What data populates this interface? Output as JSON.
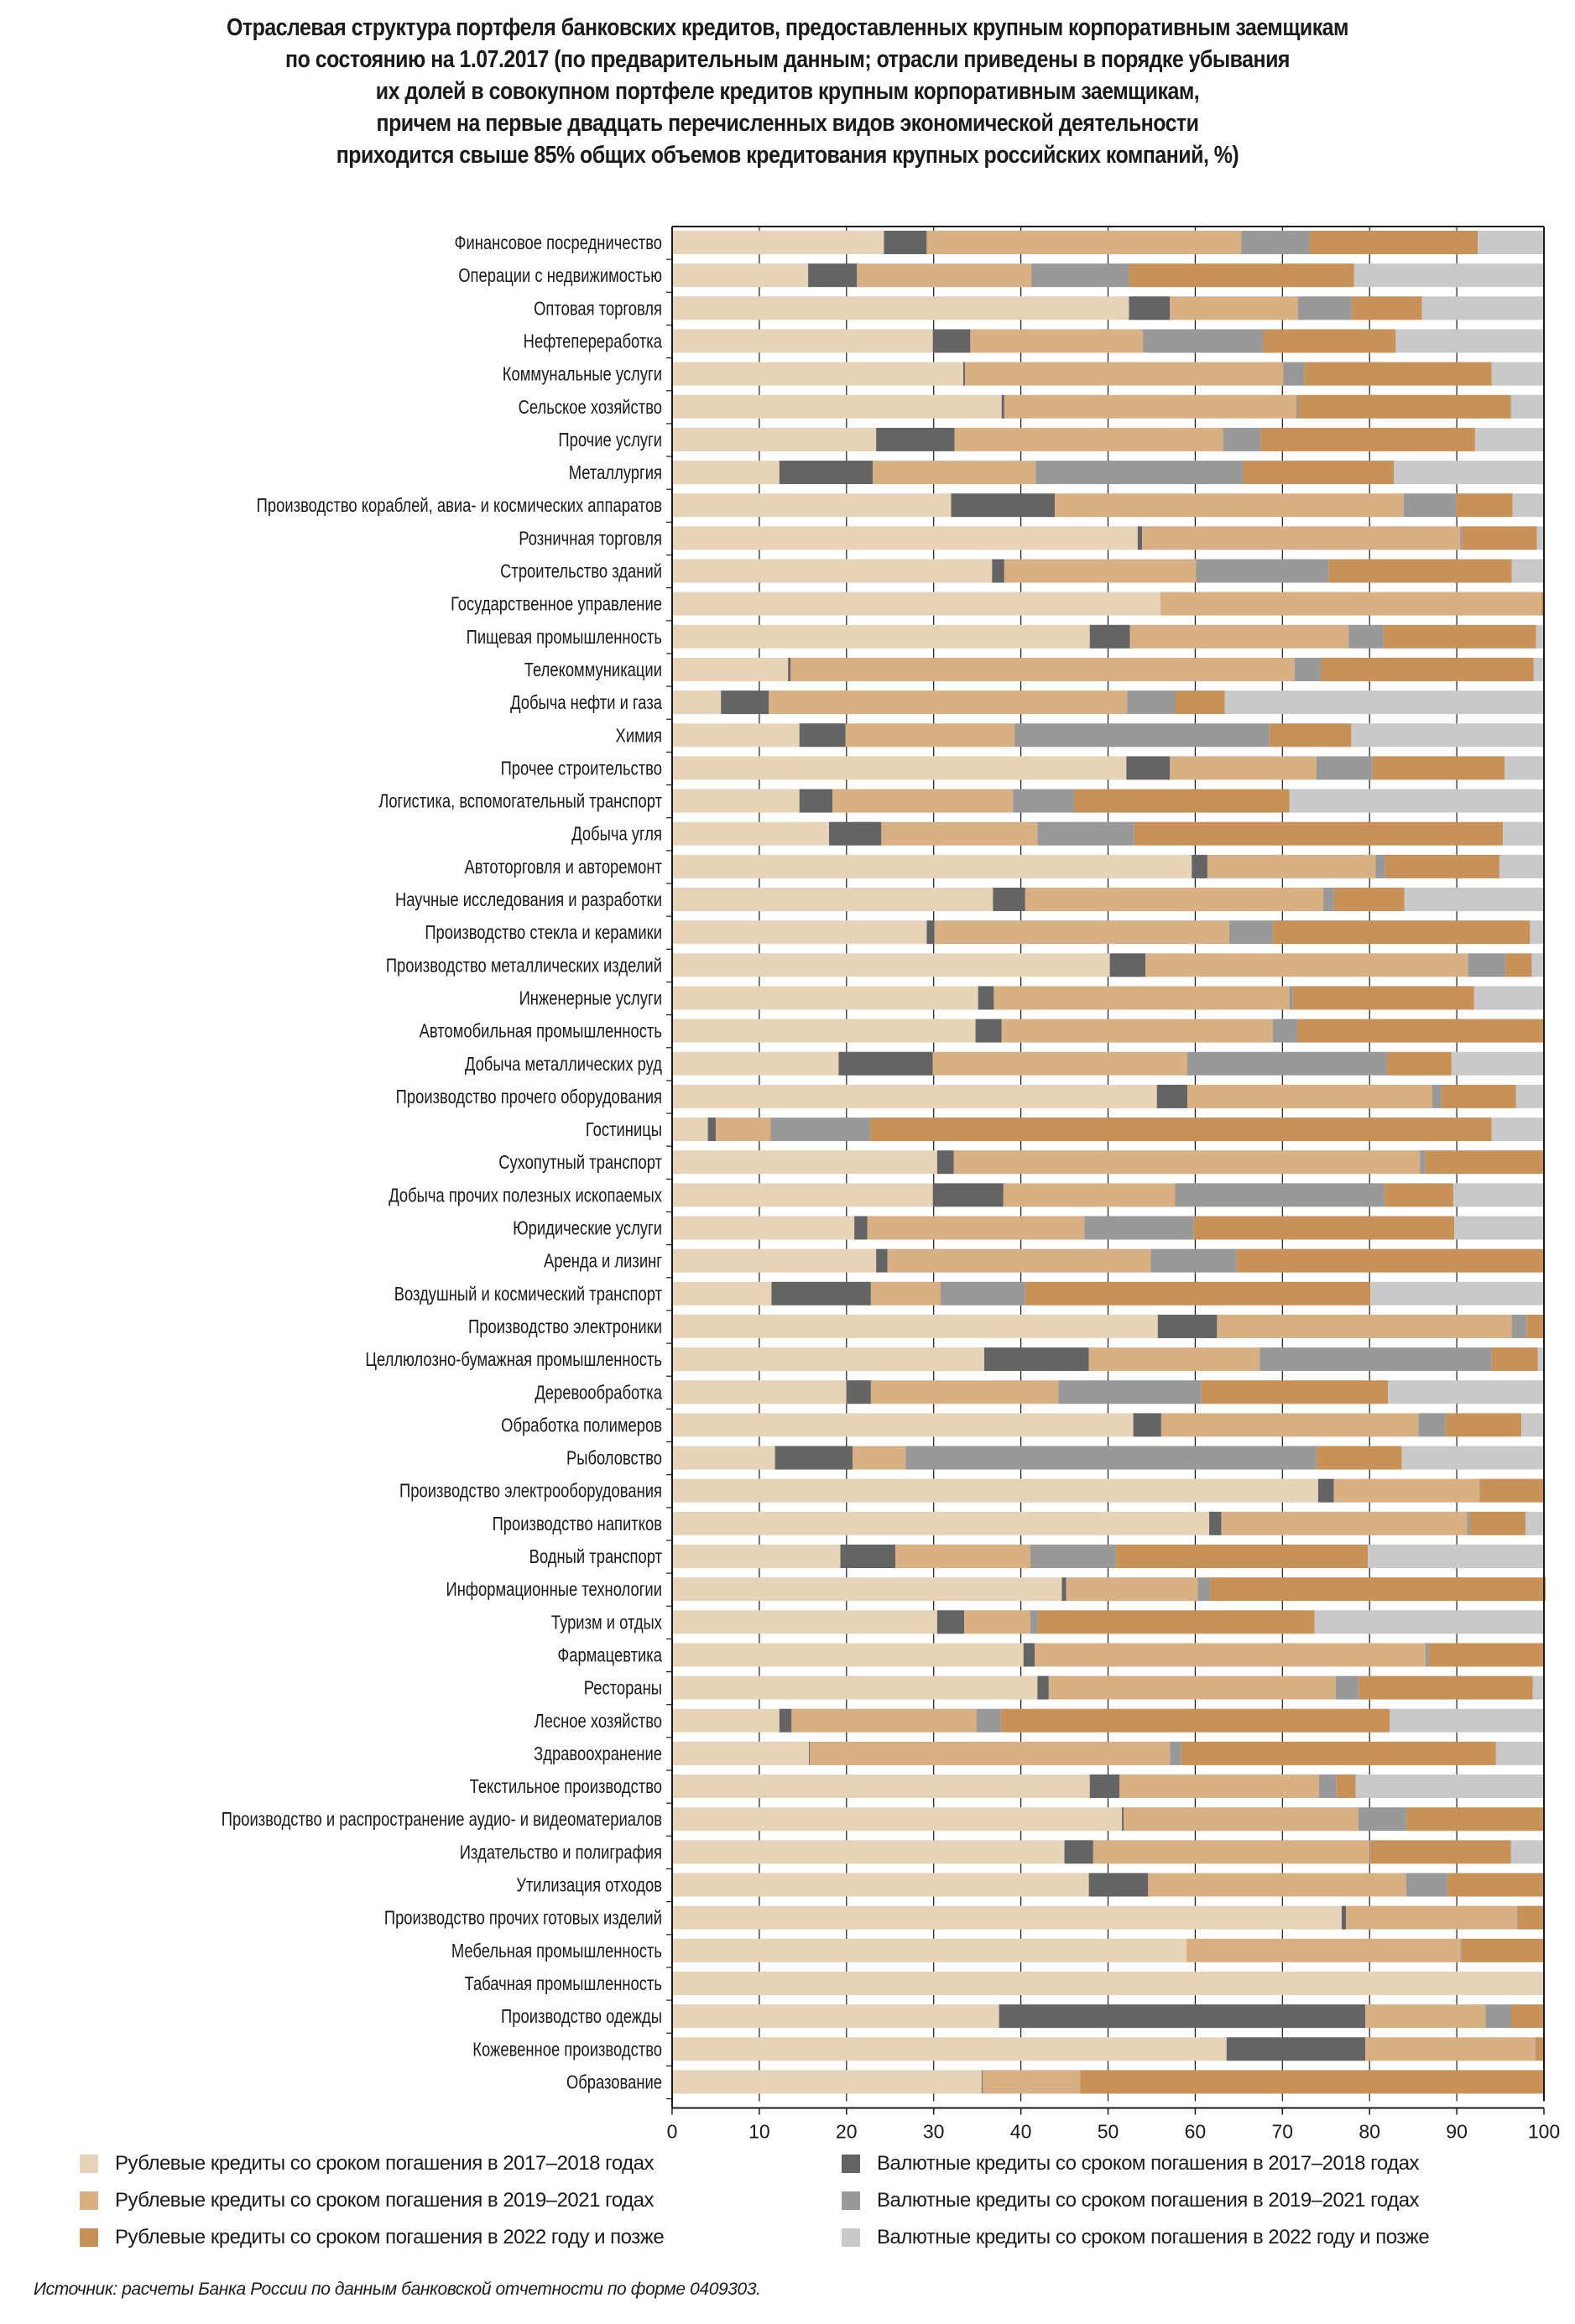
{
  "chart_data": {
    "type": "bar",
    "orientation": "horizontal",
    "stacked": true,
    "title_lines": [
      "Отраслевая структура портфеля банковских кредитов, предоставленных крупным корпоративным заемщикам",
      "по состоянию на 1.07.2017 (по предварительным данным; отрасли приведены в порядке убывания",
      "их долей в совокупном портфеле кредитов крупным корпоративным заемщикам,",
      "причем на первые двадцать перечисленных видов экономической деятельности",
      "приходится свыше 85% общих объемов кредитования крупных российских компаний, %)"
    ],
    "xlabel": "",
    "ylabel": "",
    "xlim": [
      0,
      100
    ],
    "xticks": [
      0,
      10,
      20,
      30,
      40,
      50,
      60,
      70,
      80,
      90,
      100
    ],
    "grid": true,
    "legend_position": "bottom",
    "series": [
      {
        "name": "Рублевые кредиты со сроком погашения в 2017–2018 годах",
        "color": "#e6d3b8"
      },
      {
        "name": "Валютные кредиты со сроком погашения в 2017–2018 годах",
        "color": "#636463"
      },
      {
        "name": "Рублевые кредиты со сроком погашения в 2019–2021 годах",
        "color": "#d8b084"
      },
      {
        "name": "Валютные кредиты со сроком погашения в 2019–2021 годах",
        "color": "#989998"
      },
      {
        "name": "Рублевые кредиты со сроком погашения в 2022 году и позже",
        "color": "#c79158"
      },
      {
        "name": "Валютные кредиты со сроком погашения в 2022 году и позже",
        "color": "#c9c9c9"
      }
    ],
    "series_order_note": "values per category in order: rub_2017_18, fx_2017_18, rub_2019_21, fx_2019_21, rub_2022plus, fx_2022plus",
    "categories": [
      "Финансовое посредничество",
      "Операции с недвижимостью",
      "Оптовая торговля",
      "Нефтепереработка",
      "Коммунальные услуги",
      "Сельское хозяйство",
      "Прочие услуги",
      "Металлургия",
      "Производство кораблей, авиа- и космических аппаратов",
      "Розничная торговля",
      "Строительство зданий",
      "Государственное управление",
      "Пищевая промышленность",
      "Телекоммуникации",
      "Добыча нефти и газа",
      "Химия",
      "Прочее строительство",
      "Логистика, вспомогательный транспорт",
      "Добыча угля",
      "Автоторговля и авторемонт",
      "Научные исследования и разработки",
      "Производство стекла и керамики",
      "Производство металлических изделий",
      "Инженерные услуги",
      "Автомобильная промышленность",
      "Добыча металлических руд",
      "Производство прочего оборудования",
      "Гостиницы",
      "Сухопутный транспорт",
      "Добыча прочих полезных ископаемых",
      "Юридические услуги",
      "Аренда и лизинг",
      "Воздушный и космический транспорт",
      "Производство электроники",
      "Целлюлозно-бумажная промышленность",
      "Деревообработка",
      "Обработка полимеров",
      "Рыболовство",
      "Производство электрооборудования",
      "Производство напитков",
      "Водный транспорт",
      "Информационные технологии",
      "Туризм и отдых",
      "Фармацевтика",
      "Рестораны",
      "Лесное хозяйство",
      "Здравоохранение",
      "Текстильное производство",
      "Производство и распространение аудио- и видеоматериалов",
      "Издательство и полиграфия",
      "Утилизация отходов",
      "Производство прочих готовых изделий",
      "Мебельная промышленность",
      "Табачная промышленность",
      "Производство одежды",
      "Кожевенное производство",
      "Образование"
    ],
    "values": [
      [
        24.3,
        4.9,
        36.1,
        7.8,
        19.3,
        7.6
      ],
      [
        15.6,
        5.6,
        20.0,
        11.2,
        25.8,
        21.8
      ],
      [
        52.4,
        4.7,
        14.7,
        6.1,
        8.1,
        14.0
      ],
      [
        29.9,
        4.3,
        19.8,
        13.8,
        15.2,
        17.0
      ],
      [
        33.4,
        0.2,
        36.5,
        2.4,
        21.5,
        6.0
      ],
      [
        37.8,
        0.3,
        33.5,
        0.2,
        24.4,
        3.8
      ],
      [
        23.4,
        9.0,
        30.8,
        4.3,
        24.6,
        7.9
      ],
      [
        12.3,
        10.7,
        18.7,
        23.8,
        17.3,
        17.2
      ],
      [
        32.0,
        11.9,
        40.0,
        6.0,
        6.5,
        3.6
      ],
      [
        53.4,
        0.5,
        36.5,
        0.2,
        8.6,
        0.8
      ],
      [
        36.7,
        1.4,
        22.0,
        15.2,
        21.0,
        3.7
      ],
      [
        56.0,
        0.0,
        43.7,
        0.0,
        0.3,
        0.0
      ],
      [
        47.9,
        4.6,
        25.1,
        4.0,
        17.5,
        0.9
      ],
      [
        13.3,
        0.3,
        57.8,
        3.0,
        24.4,
        1.2
      ],
      [
        5.6,
        5.5,
        41.1,
        5.5,
        5.7,
        36.6
      ],
      [
        14.6,
        5.3,
        19.4,
        29.2,
        9.4,
        22.1
      ],
      [
        52.1,
        5.0,
        16.8,
        6.4,
        15.2,
        4.5
      ],
      [
        14.6,
        3.8,
        20.7,
        7.0,
        24.7,
        29.2
      ],
      [
        18.0,
        6.0,
        17.9,
        11.1,
        42.3,
        4.7
      ],
      [
        59.6,
        1.8,
        19.3,
        1.1,
        13.1,
        5.1
      ],
      [
        36.8,
        3.7,
        34.2,
        1.2,
        8.1,
        16.0
      ],
      [
        29.2,
        0.9,
        33.8,
        5.0,
        29.5,
        1.6
      ],
      [
        50.2,
        4.1,
        37.0,
        4.3,
        3.0,
        1.4
      ],
      [
        35.1,
        1.8,
        33.9,
        0.4,
        20.8,
        8.0
      ],
      [
        34.8,
        3.0,
        31.1,
        2.8,
        28.3,
        0.0
      ],
      [
        19.1,
        10.8,
        29.2,
        22.9,
        7.4,
        10.6
      ],
      [
        55.6,
        3.5,
        28.1,
        1.0,
        8.6,
        3.2
      ],
      [
        4.1,
        0.9,
        6.3,
        11.4,
        71.3,
        6.0
      ],
      [
        30.4,
        1.9,
        53.5,
        0.6,
        13.6,
        0.0
      ],
      [
        29.9,
        8.1,
        19.7,
        24.0,
        7.9,
        10.4
      ],
      [
        20.9,
        1.5,
        24.9,
        12.5,
        29.9,
        10.3
      ],
      [
        23.4,
        1.3,
        30.2,
        9.8,
        35.3,
        0.0
      ],
      [
        11.4,
        11.4,
        8.0,
        9.7,
        39.6,
        19.9
      ],
      [
        55.7,
        6.8,
        33.8,
        1.7,
        2.0,
        0.0
      ],
      [
        35.8,
        12.0,
        19.6,
        26.6,
        5.3,
        0.7
      ],
      [
        20.0,
        2.8,
        21.5,
        16.4,
        21.4,
        17.9
      ],
      [
        52.9,
        3.2,
        29.5,
        3.1,
        8.7,
        2.6
      ],
      [
        11.8,
        8.9,
        6.1,
        47.1,
        9.8,
        16.3
      ],
      [
        74.1,
        1.8,
        16.7,
        0.0,
        7.4,
        0.0
      ],
      [
        61.6,
        1.4,
        28.2,
        0.3,
        6.4,
        2.1
      ],
      [
        19.3,
        6.3,
        15.5,
        9.8,
        28.9,
        20.2
      ],
      [
        44.7,
        0.5,
        15.1,
        1.4,
        38.5,
        0.0
      ],
      [
        30.4,
        3.1,
        7.6,
        0.8,
        31.8,
        26.3
      ],
      [
        40.3,
        1.3,
        44.8,
        0.4,
        13.2,
        0.0
      ],
      [
        41.9,
        1.3,
        32.9,
        2.7,
        19.9,
        1.3
      ],
      [
        12.3,
        1.4,
        21.2,
        2.8,
        44.6,
        17.7
      ],
      [
        15.7,
        0.1,
        41.3,
        1.3,
        36.1,
        5.5
      ],
      [
        47.9,
        3.4,
        22.9,
        2.0,
        2.2,
        21.6
      ],
      [
        51.6,
        0.2,
        26.9,
        5.5,
        15.8,
        0.0
      ],
      [
        45.0,
        3.3,
        31.7,
        0.1,
        16.1,
        3.8
      ],
      [
        47.8,
        6.8,
        29.6,
        4.7,
        11.1,
        0.0
      ],
      [
        76.8,
        0.5,
        19.6,
        0.1,
        3.0,
        0.0
      ],
      [
        59.0,
        0.0,
        31.4,
        0.1,
        9.5,
        0.0
      ],
      [
        100.0,
        0.0,
        0.0,
        0.0,
        0.0,
        0.0
      ],
      [
        37.5,
        42.0,
        13.8,
        2.9,
        3.8,
        0.0
      ],
      [
        63.6,
        15.9,
        19.5,
        0.1,
        0.9,
        0.0
      ],
      [
        35.5,
        0.1,
        11.2,
        0.0,
        53.2,
        0.0
      ]
    ]
  },
  "legend": {
    "items": [
      {
        "label": "Рублевые кредиты со сроком погашения в 2017–2018 годах",
        "color": "#e6d3b8"
      },
      {
        "label": "Валютные кредиты со сроком погашения в 2017–2018 годах",
        "color": "#636463"
      },
      {
        "label": "Рублевые кредиты со сроком погашения в 2019–2021 годах",
        "color": "#d8b084"
      },
      {
        "label": "Валютные кредиты со сроком погашения в 2019–2021 годах",
        "color": "#989998"
      },
      {
        "label": "Рублевые кредиты со сроком погашения в 2022 году и позже",
        "color": "#c79158"
      },
      {
        "label": "Валютные кредиты со сроком погашения в 2022 году и позже",
        "color": "#c9c9c9"
      }
    ]
  },
  "source": "Источник: расчеты Банка России по данным банковской отчетности по форме 0409303."
}
